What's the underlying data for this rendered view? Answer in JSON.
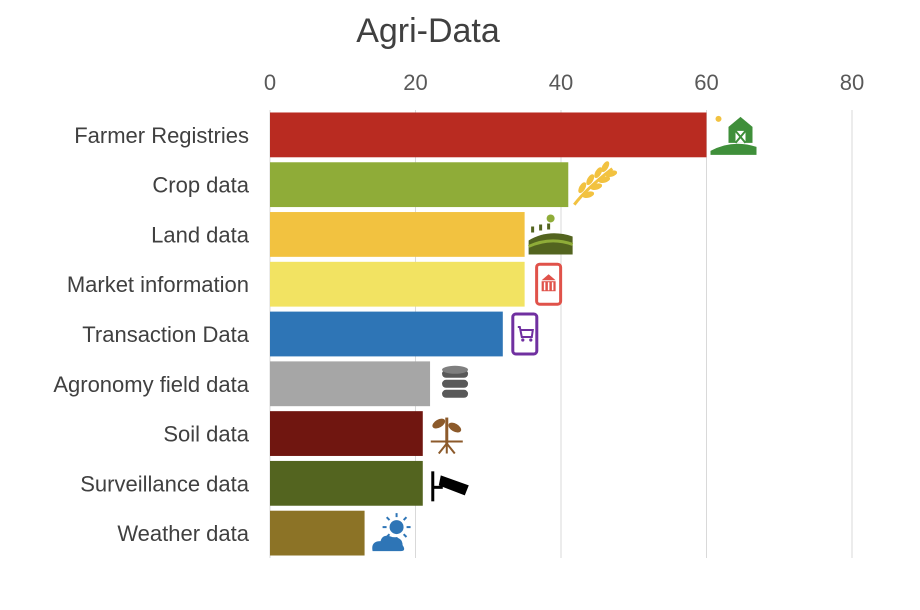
{
  "chart_data": {
    "type": "bar",
    "orientation": "horizontal",
    "title": "Agri-Data",
    "xlabel": "",
    "ylabel": "",
    "xlim": [
      0,
      80
    ],
    "xticks": [
      0,
      20,
      40,
      60,
      80
    ],
    "grid": true,
    "axis_position": "top",
    "categories": [
      "Farmer Registries",
      "Crop data",
      "Land data",
      "Market information",
      "Transaction Data",
      "Agronomy field data",
      "Soil data",
      "Surveillance data",
      "Weather data"
    ],
    "values": [
      60,
      41,
      35,
      35,
      32,
      22,
      21,
      21,
      13
    ],
    "colors": [
      "#b92b21",
      "#8fac38",
      "#f2c240",
      "#f2e362",
      "#2e75b6",
      "#a6a6a6",
      "#701610",
      "#53641f",
      "#8c7326"
    ],
    "icons": [
      "farm-barn-icon",
      "wheat-icon",
      "field-sun-icon",
      "mobile-bank-icon",
      "mobile-cart-icon",
      "database-icon",
      "plant-roots-icon",
      "surveillance-camera-icon",
      "sun-cloud-icon"
    ]
  }
}
